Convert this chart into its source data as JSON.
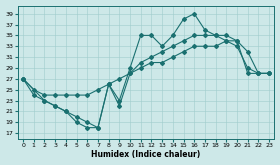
{
  "xlabel": "Humidex (Indice chaleur)",
  "background_color": "#cde8e8",
  "line_color": "#1a7070",
  "xlim": [
    -0.5,
    23.5
  ],
  "ylim": [
    16,
    40.5
  ],
  "yticks": [
    17,
    19,
    21,
    23,
    25,
    27,
    29,
    31,
    33,
    35,
    37,
    39
  ],
  "xticks": [
    0,
    1,
    2,
    3,
    4,
    5,
    6,
    7,
    8,
    9,
    10,
    11,
    12,
    13,
    14,
    15,
    16,
    17,
    18,
    19,
    20,
    21,
    22,
    23
  ],
  "line1_x": [
    0,
    1,
    2,
    3,
    4,
    5,
    6,
    7,
    8,
    9,
    10,
    11,
    12,
    13,
    14,
    15,
    16,
    17,
    18,
    19,
    20,
    21,
    22,
    23
  ],
  "line1_y": [
    27,
    24,
    23,
    22,
    21,
    19,
    18,
    18,
    26,
    23,
    29,
    35,
    35,
    33,
    35,
    38,
    39,
    36,
    35,
    34,
    33,
    29,
    28,
    28
  ],
  "line2_x": [
    0,
    2,
    3,
    4,
    5,
    6,
    7,
    8,
    9,
    10,
    11,
    12,
    13,
    14,
    15,
    16,
    17,
    18,
    19,
    20,
    21,
    22,
    23
  ],
  "line2_y": [
    27,
    23,
    22,
    21,
    20,
    19,
    18,
    26,
    22,
    28,
    30,
    31,
    32,
    33,
    34,
    35,
    35,
    35,
    35,
    34,
    32,
    28,
    28
  ],
  "line3_x": [
    0,
    1,
    2,
    3,
    4,
    5,
    6,
    7,
    8,
    9,
    10,
    11,
    12,
    13,
    14,
    15,
    16,
    17,
    18,
    19,
    20,
    21,
    22,
    23
  ],
  "line3_y": [
    27,
    25,
    24,
    24,
    24,
    24,
    24,
    25,
    26,
    27,
    28,
    29,
    30,
    30,
    31,
    32,
    33,
    33,
    33,
    34,
    34,
    28,
    28,
    28
  ]
}
